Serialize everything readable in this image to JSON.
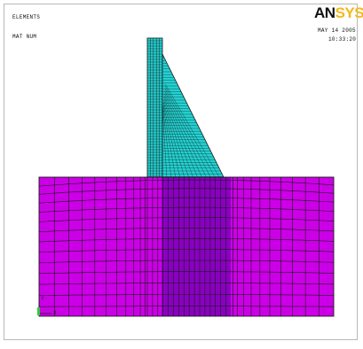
{
  "window": {
    "title_line_1": "ELEMENTS",
    "title_line_2": "MAT NUM",
    "date": "MAY 14 2005",
    "time": "10:33:20",
    "logo": {
      "dark": "AN",
      "accent": "SYS"
    },
    "triad": {
      "y": "Y",
      "x": "X"
    }
  },
  "colors": {
    "foundation": "#cc00e6",
    "foundation_dark": "#8a00c0",
    "dam": "#22d3d3",
    "mesh_line": "#1a1a1a",
    "logo_accent": "#f5b81a"
  }
}
